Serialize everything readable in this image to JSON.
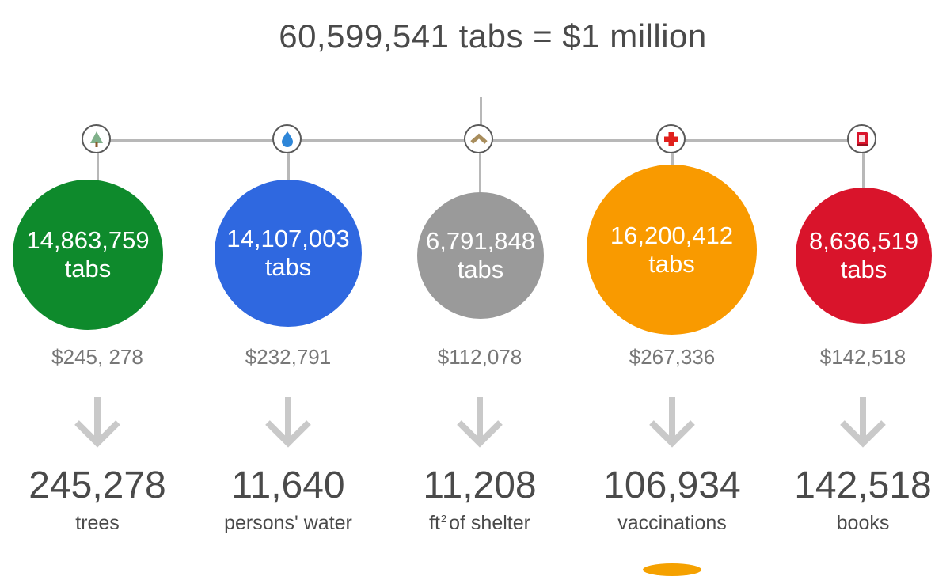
{
  "title": "60,599,541 tabs = $1 million",
  "items": [
    {
      "icon": "tree-icon",
      "color": "#0e8a2c",
      "tabs": "14,863,759",
      "unit": "tabs",
      "cost": "$245, 278",
      "result": "245,278",
      "caption": "trees"
    },
    {
      "icon": "water-drop-icon",
      "color": "#2f68e0",
      "tabs": "14,107,003",
      "unit": "tabs",
      "cost": "$232,791",
      "result": "11,640",
      "caption": "persons' water"
    },
    {
      "icon": "roof-icon",
      "color": "#9a9a9a",
      "tabs": "6,791,848",
      "unit": "tabs",
      "cost": "$112,078",
      "result": "11,208",
      "caption_pre": "ft",
      "caption_sup": "2",
      "caption_post": "of shelter"
    },
    {
      "icon": "medical-cross-icon",
      "color": "#f99a00",
      "tabs": "16,200,412",
      "unit": "tabs",
      "cost": "$267,336",
      "result": "106,934",
      "caption": "vaccinations"
    },
    {
      "icon": "book-icon",
      "color": "#d9142b",
      "tabs": "8,636,519",
      "unit": "tabs",
      "cost": "$142,518",
      "result": "142,518",
      "caption": "books"
    }
  ]
}
